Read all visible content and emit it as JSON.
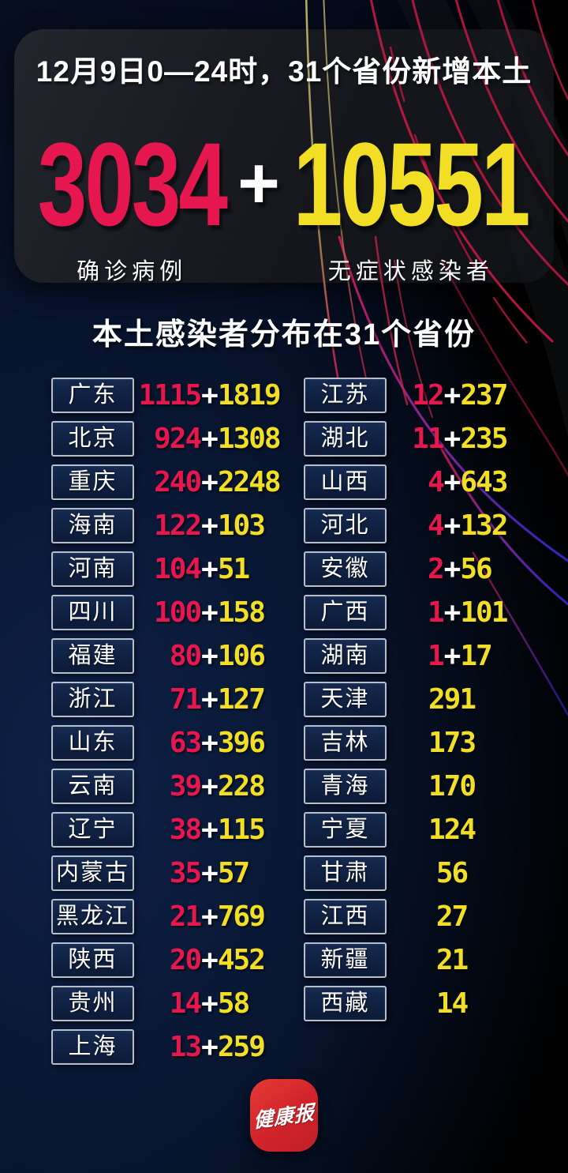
{
  "header": {
    "title": "12月9日0—24时，31个省份新增本土",
    "plus": "+",
    "confirmed": {
      "value": "3034",
      "label": "确诊病例"
    },
    "asymptomatic": {
      "value": "10551",
      "label": "无症状感染者"
    }
  },
  "section": {
    "title": "本土感染者分布在31个省份"
  },
  "table": {
    "plus": "+",
    "left": [
      {
        "province": "广东",
        "confirmed": "1115",
        "asymptomatic": "1819"
      },
      {
        "province": "北京",
        "confirmed": "924",
        "asymptomatic": "1308"
      },
      {
        "province": "重庆",
        "confirmed": "240",
        "asymptomatic": "2248"
      },
      {
        "province": "海南",
        "confirmed": "122",
        "asymptomatic": "103"
      },
      {
        "province": "河南",
        "confirmed": "104",
        "asymptomatic": "51"
      },
      {
        "province": "四川",
        "confirmed": "100",
        "asymptomatic": "158"
      },
      {
        "province": "福建",
        "confirmed": "80",
        "asymptomatic": "106"
      },
      {
        "province": "浙江",
        "confirmed": "71",
        "asymptomatic": "127"
      },
      {
        "province": "山东",
        "confirmed": "63",
        "asymptomatic": "396"
      },
      {
        "province": "云南",
        "confirmed": "39",
        "asymptomatic": "228"
      },
      {
        "province": "辽宁",
        "confirmed": "38",
        "asymptomatic": "115"
      },
      {
        "province": "内蒙古",
        "confirmed": "35",
        "asymptomatic": "57"
      },
      {
        "province": "黑龙江",
        "confirmed": "21",
        "asymptomatic": "769"
      },
      {
        "province": "陕西",
        "confirmed": "20",
        "asymptomatic": "452"
      },
      {
        "province": "贵州",
        "confirmed": "14",
        "asymptomatic": "58"
      },
      {
        "province": "上海",
        "confirmed": "13",
        "asymptomatic": "259"
      }
    ],
    "right": [
      {
        "province": "江苏",
        "confirmed": "12",
        "asymptomatic": "237"
      },
      {
        "province": "湖北",
        "confirmed": "11",
        "asymptomatic": "235"
      },
      {
        "province": "山西",
        "confirmed": "4",
        "asymptomatic": "643"
      },
      {
        "province": "河北",
        "confirmed": "4",
        "asymptomatic": "132"
      },
      {
        "province": "安徽",
        "confirmed": "2",
        "asymptomatic": "56"
      },
      {
        "province": "广西",
        "confirmed": "1",
        "asymptomatic": "101"
      },
      {
        "province": "湖南",
        "confirmed": "1",
        "asymptomatic": "17"
      },
      {
        "province": "天津",
        "confirmed": "",
        "asymptomatic": "291"
      },
      {
        "province": "吉林",
        "confirmed": "",
        "asymptomatic": "173"
      },
      {
        "province": "青海",
        "confirmed": "",
        "asymptomatic": "170"
      },
      {
        "province": "宁夏",
        "confirmed": "",
        "asymptomatic": "124"
      },
      {
        "province": "甘肃",
        "confirmed": "",
        "asymptomatic": "56"
      },
      {
        "province": "江西",
        "confirmed": "",
        "asymptomatic": "27"
      },
      {
        "province": "新疆",
        "confirmed": "",
        "asymptomatic": "21"
      },
      {
        "province": "西藏",
        "confirmed": "",
        "asymptomatic": "14"
      }
    ]
  },
  "footer": {
    "logo_text": "健康报"
  },
  "colors": {
    "confirmed_pink": "#e6164e",
    "asymptomatic_yellow": "#f2df25",
    "box_border": "#b6bfc9",
    "box_fill": "#0e2244",
    "logo_red": "#d0232a"
  },
  "chart_data": {
    "type": "table",
    "title": "12月9日0—24时，31个省份新增本土",
    "subtitle": "本土感染者分布在31个省份",
    "totals": {
      "confirmed": 3034,
      "asymptomatic": 10551
    },
    "columns": [
      "province",
      "confirmed",
      "asymptomatic"
    ],
    "rows": [
      [
        "广东",
        1115,
        1819
      ],
      [
        "北京",
        924,
        1308
      ],
      [
        "重庆",
        240,
        2248
      ],
      [
        "海南",
        122,
        103
      ],
      [
        "河南",
        104,
        51
      ],
      [
        "四川",
        100,
        158
      ],
      [
        "福建",
        80,
        106
      ],
      [
        "浙江",
        71,
        127
      ],
      [
        "山东",
        63,
        396
      ],
      [
        "云南",
        39,
        228
      ],
      [
        "辽宁",
        38,
        115
      ],
      [
        "内蒙古",
        35,
        57
      ],
      [
        "黑龙江",
        21,
        769
      ],
      [
        "陕西",
        20,
        452
      ],
      [
        "贵州",
        14,
        58
      ],
      [
        "上海",
        13,
        259
      ],
      [
        "江苏",
        12,
        237
      ],
      [
        "湖北",
        11,
        235
      ],
      [
        "山西",
        4,
        643
      ],
      [
        "河北",
        4,
        132
      ],
      [
        "安徽",
        2,
        56
      ],
      [
        "广西",
        1,
        101
      ],
      [
        "湖南",
        1,
        17
      ],
      [
        "天津",
        null,
        291
      ],
      [
        "吉林",
        null,
        173
      ],
      [
        "青海",
        null,
        170
      ],
      [
        "宁夏",
        null,
        124
      ],
      [
        "甘肃",
        null,
        56
      ],
      [
        "江西",
        null,
        27
      ],
      [
        "新疆",
        null,
        21
      ],
      [
        "西藏",
        null,
        14
      ]
    ]
  }
}
